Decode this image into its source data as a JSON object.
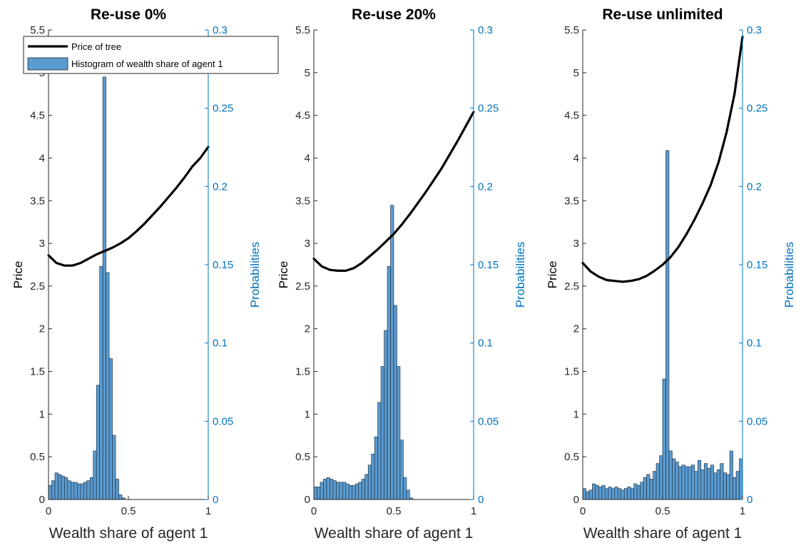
{
  "colors": {
    "price_line": "#000000",
    "bar_fill": "#5b9bd0",
    "bar_edge": "#1a2630",
    "right_axis": "#0072bd",
    "left_axis": "#262626"
  },
  "legend": {
    "line_label": "Price of tree",
    "bar_label": "Histogram of wealth share of agent 1",
    "placement": "top-left of first panel"
  },
  "chart_data": [
    {
      "type": "line+histogram",
      "title": "Re-use 0%",
      "xlabel": "Wealth share of agent 1",
      "ylabel_left": "Price",
      "ylabel_right": "Probabilities",
      "xlim": [
        0,
        1
      ],
      "ylim_left": [
        0,
        5.5
      ],
      "ylim_right": [
        0,
        0.3
      ],
      "xticks": [
        "0",
        "0.5",
        "1"
      ],
      "yticks_left": [
        "0",
        "0.5",
        "1",
        "1.5",
        "2",
        "2.5",
        "3",
        "3.5",
        "4",
        "4.5",
        "5",
        "5.5"
      ],
      "yticks_right": [
        "0",
        "0.05",
        "0.1",
        "0.15",
        "0.2",
        "0.25",
        "0.3"
      ],
      "price_line": {
        "name": "Price of tree",
        "x": [
          0,
          0.05,
          0.1,
          0.15,
          0.2,
          0.25,
          0.3,
          0.35,
          0.4,
          0.45,
          0.5,
          0.55,
          0.6,
          0.65,
          0.7,
          0.75,
          0.8,
          0.85,
          0.9,
          0.95,
          1.0
        ],
        "y": [
          2.86,
          2.77,
          2.74,
          2.74,
          2.77,
          2.82,
          2.87,
          2.91,
          2.95,
          3.0,
          3.06,
          3.14,
          3.23,
          3.33,
          3.43,
          3.54,
          3.65,
          3.77,
          3.9,
          4.0,
          4.13
        ]
      },
      "histogram": {
        "name": "Histogram of wealth share of agent 1",
        "bin_start": 0,
        "bin_width": 0.02,
        "values": [
          0.009,
          0.012,
          0.017,
          0.016,
          0.015,
          0.014,
          0.012,
          0.011,
          0.011,
          0.01,
          0.01,
          0.011,
          0.012,
          0.014,
          0.031,
          0.073,
          0.149,
          0.27,
          0.145,
          0.09,
          0.041,
          0.013,
          0.003,
          0.001
        ]
      }
    },
    {
      "type": "line+histogram",
      "title": "Re-use 20%",
      "xlabel": "Wealth share of agent 1",
      "ylabel_left": "Price",
      "ylabel_right": "Probabilities",
      "xlim": [
        0,
        1
      ],
      "ylim_left": [
        0,
        5.5
      ],
      "ylim_right": [
        0,
        0.3
      ],
      "xticks": [
        "0",
        "0.5",
        "1"
      ],
      "yticks_left": [
        "0",
        "0.5",
        "1",
        "1.5",
        "2",
        "2.5",
        "3",
        "3.5",
        "4",
        "4.5",
        "5",
        "5.5"
      ],
      "yticks_right": [
        "0",
        "0.05",
        "0.1",
        "0.15",
        "0.2",
        "0.25",
        "0.3"
      ],
      "price_line": {
        "name": "Price of tree",
        "x": [
          0,
          0.05,
          0.1,
          0.15,
          0.2,
          0.25,
          0.3,
          0.35,
          0.4,
          0.45,
          0.5,
          0.55,
          0.6,
          0.65,
          0.7,
          0.75,
          0.8,
          0.85,
          0.9,
          0.95,
          1.0
        ],
        "y": [
          2.82,
          2.73,
          2.69,
          2.68,
          2.68,
          2.71,
          2.77,
          2.85,
          2.93,
          3.02,
          3.11,
          3.22,
          3.34,
          3.47,
          3.6,
          3.74,
          3.88,
          4.04,
          4.2,
          4.37,
          4.54
        ]
      },
      "histogram": {
        "name": "Histogram of wealth share of agent 1",
        "bin_start": 0,
        "bin_width": 0.02,
        "values": [
          0.008,
          0.008,
          0.011,
          0.013,
          0.014,
          0.013,
          0.012,
          0.011,
          0.011,
          0.011,
          0.01,
          0.009,
          0.009,
          0.01,
          0.011,
          0.013,
          0.016,
          0.022,
          0.029,
          0.04,
          0.062,
          0.085,
          0.108,
          0.149,
          0.188,
          0.124,
          0.085,
          0.038,
          0.014,
          0.006,
          0.001
        ]
      }
    },
    {
      "type": "line+histogram",
      "title": "Re-use unlimited",
      "xlabel": "Wealth share of agent 1",
      "ylabel_left": "Price",
      "ylabel_right": "Probabilities",
      "xlim": [
        0,
        1
      ],
      "ylim_left": [
        0,
        5.5
      ],
      "ylim_right": [
        0,
        0.3
      ],
      "xticks": [
        "0",
        "0.5",
        "1"
      ],
      "yticks_left": [
        "0",
        "0.5",
        "1",
        "1.5",
        "2",
        "2.5",
        "3",
        "3.5",
        "4",
        "4.5",
        "5",
        "5.5"
      ],
      "yticks_right": [
        "0",
        "0.05",
        "0.1",
        "0.15",
        "0.2",
        "0.25",
        "0.3"
      ],
      "price_line": {
        "name": "Price of tree",
        "x": [
          0,
          0.05,
          0.1,
          0.15,
          0.2,
          0.25,
          0.3,
          0.35,
          0.4,
          0.45,
          0.5,
          0.55,
          0.6,
          0.65,
          0.7,
          0.75,
          0.8,
          0.85,
          0.9,
          0.95,
          1.0
        ],
        "y": [
          2.77,
          2.67,
          2.61,
          2.57,
          2.56,
          2.55,
          2.56,
          2.58,
          2.62,
          2.68,
          2.75,
          2.84,
          2.96,
          3.11,
          3.28,
          3.47,
          3.68,
          3.95,
          4.3,
          4.75,
          5.42
        ]
      },
      "histogram": {
        "name": "Histogram of wealth share of agent 1",
        "bin_start": 0,
        "bin_width": 0.02,
        "values": [
          0.007,
          0.005,
          0.006,
          0.01,
          0.009,
          0.008,
          0.009,
          0.007,
          0.008,
          0.007,
          0.008,
          0.007,
          0.006,
          0.007,
          0.008,
          0.007,
          0.01,
          0.009,
          0.011,
          0.014,
          0.016,
          0.013,
          0.018,
          0.023,
          0.028,
          0.077,
          0.223,
          0.031,
          0.026,
          0.024,
          0.021,
          0.022,
          0.021,
          0.021,
          0.022,
          0.018,
          0.025,
          0.019,
          0.023,
          0.02,
          0.022,
          0.017,
          0.019,
          0.023,
          0.017,
          0.016,
          0.031,
          0.014,
          0.018,
          0.026
        ]
      }
    }
  ]
}
